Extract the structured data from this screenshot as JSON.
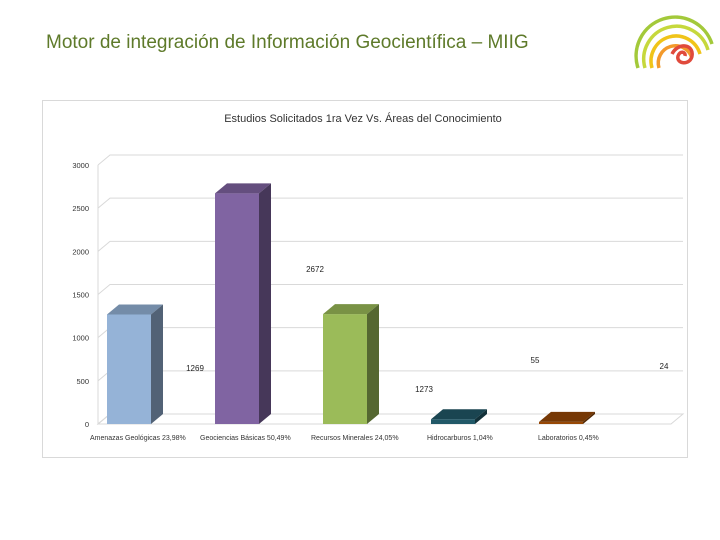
{
  "slide": {
    "title": "Motor de integración de Información Geocientífica – MIIG",
    "logo_icon": "spiral-rainbow-logo-icon"
  },
  "colors": {
    "title": "#5e7a2a",
    "bar_1": "#95b3d7",
    "bar_2": "#8064a2",
    "bar_3": "#9bbb59",
    "bar_4": "#215968",
    "bar_5": "#974806"
  },
  "chart_data": {
    "type": "bar",
    "title": "Estudios Solicitados 1ra Vez  Vs. Áreas del Conocimiento",
    "categories": [
      "Amenazas Geológicas 23,98%",
      "Geociencias Básicas 50,49%",
      "Recursos Minerales 24,05%",
      "Hidrocarburos 1,04%",
      "Laboratorios 0,45%"
    ],
    "values": [
      1269,
      2672,
      1273,
      55,
      24
    ],
    "data_labels": [
      "1269",
      "2672",
      "1273",
      "55",
      "24"
    ],
    "yticks": [
      "0",
      "500",
      "1000",
      "1500",
      "2000",
      "2500",
      "3000"
    ],
    "ylim": [
      0,
      3000
    ],
    "style": "3d-column",
    "grid": true,
    "legend": "none"
  }
}
